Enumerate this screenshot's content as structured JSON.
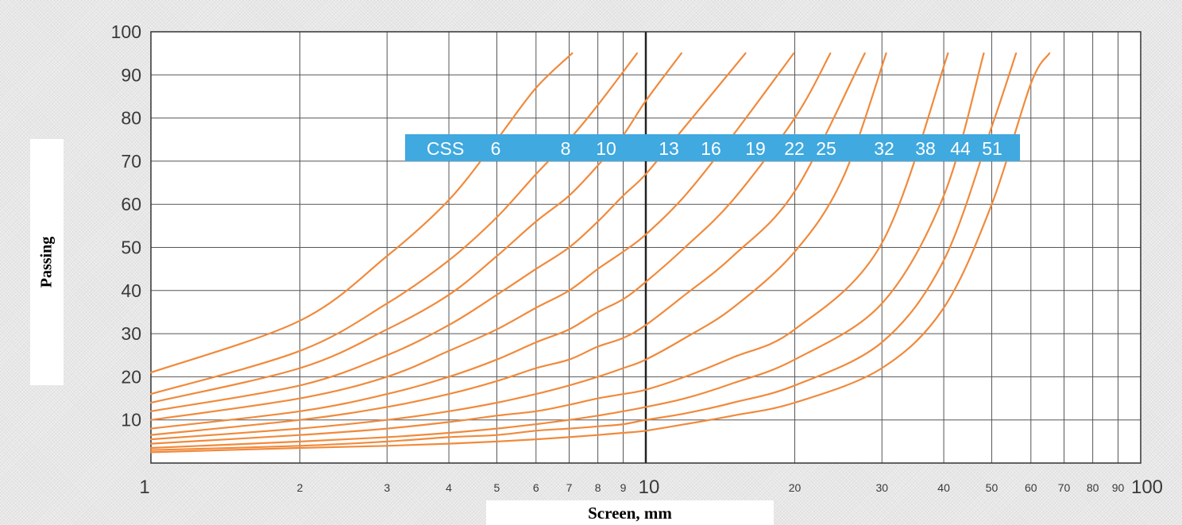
{
  "chart_data": {
    "type": "line",
    "title": "",
    "xlabel": "Screen, mm",
    "ylabel": "Passing",
    "x_scale": "log",
    "xlim": [
      1,
      100
    ],
    "ylim": [
      0,
      100
    ],
    "grid": true,
    "x_ticks": [
      1,
      2,
      3,
      4,
      5,
      6,
      7,
      8,
      9,
      10,
      20,
      30,
      40,
      50,
      60,
      70,
      80,
      90,
      100
    ],
    "x_tick_labels": [
      "1",
      "2",
      "3",
      "4",
      "5",
      "6",
      "7",
      "8",
      "9",
      "10",
      "20",
      "30",
      "40",
      "50",
      "60",
      "70",
      "80",
      "90",
      "100"
    ],
    "y_ticks": [
      10,
      20,
      30,
      40,
      50,
      60,
      70,
      80,
      90,
      100
    ],
    "y_tick_labels": [
      "10",
      "20",
      "30",
      "40",
      "50",
      "60",
      "70",
      "80",
      "90",
      "100"
    ],
    "banner": {
      "label": "CSS",
      "values": [
        "6",
        "8",
        "10",
        "13",
        "16",
        "19",
        "22",
        "25",
        "32",
        "38",
        "44",
        "51"
      ],
      "color": "#3fa9e0"
    },
    "line_color": "#f08a3c",
    "series": [
      {
        "css": "6",
        "x": [
          1,
          2,
          3,
          4,
          5,
          6,
          7.1
        ],
        "y": [
          21,
          33,
          48,
          61,
          75,
          87,
          95
        ]
      },
      {
        "css": "8",
        "x": [
          1,
          2,
          3,
          4,
          5,
          6,
          7,
          8,
          9.6
        ],
        "y": [
          16,
          26,
          37,
          47,
          57,
          67,
          75,
          83,
          95
        ]
      },
      {
        "css": "10",
        "x": [
          1,
          2,
          3,
          4,
          5,
          6,
          7,
          8,
          9,
          10,
          11.8
        ],
        "y": [
          14,
          22,
          31,
          39,
          48,
          56,
          62,
          69,
          76,
          84,
          95
        ]
      },
      {
        "css": "13",
        "x": [
          1,
          2,
          3,
          4,
          5,
          6,
          7,
          8,
          9,
          10,
          12,
          15.9
        ],
        "y": [
          12,
          18,
          25,
          32,
          39,
          45,
          50,
          56,
          62,
          67,
          78,
          95
        ]
      },
      {
        "css": "16",
        "x": [
          1,
          2,
          3,
          4,
          5,
          6,
          7,
          8,
          9,
          10,
          12,
          15,
          19.9
        ],
        "y": [
          10,
          15,
          20,
          26,
          31,
          36,
          40,
          45,
          49,
          53,
          62,
          76,
          95
        ]
      },
      {
        "css": "19",
        "x": [
          1,
          2,
          3,
          4,
          5,
          6,
          7,
          8,
          9,
          10,
          12,
          15,
          20,
          23.6
        ],
        "y": [
          8,
          12,
          16,
          20,
          24,
          28,
          31,
          35,
          38,
          42,
          50,
          61,
          80,
          95
        ]
      },
      {
        "css": "22",
        "x": [
          1,
          2,
          3,
          4,
          5,
          6,
          7,
          8,
          9,
          10,
          12,
          15,
          20,
          27.7
        ],
        "y": [
          6.5,
          10,
          13,
          16,
          19,
          22,
          24,
          27,
          29,
          32,
          39,
          48,
          63,
          95
        ]
      },
      {
        "css": "25",
        "x": [
          1,
          2,
          3,
          4,
          5,
          6,
          7,
          8,
          9,
          10,
          12,
          15,
          20,
          25,
          30.6
        ],
        "y": [
          5.5,
          8,
          10,
          12,
          14,
          16,
          18,
          20,
          22,
          24,
          29,
          36,
          49,
          66,
          95
        ]
      },
      {
        "css": "32",
        "x": [
          1,
          2,
          3,
          4,
          5,
          6,
          7,
          8,
          9,
          10,
          12,
          15,
          20,
          30,
          40.8
        ],
        "y": [
          4.5,
          6.5,
          8,
          9.5,
          11,
          12,
          13.5,
          15,
          16,
          17,
          20,
          24.5,
          31,
          51,
          95
        ]
      },
      {
        "css": "38",
        "x": [
          1,
          2,
          3,
          4,
          5,
          6,
          7,
          8,
          9,
          10,
          12,
          15,
          20,
          30,
          40,
          48.2
        ],
        "y": [
          3.5,
          5,
          6,
          7,
          8,
          9,
          10,
          11,
          12,
          13,
          15,
          18.5,
          24,
          37,
          62,
          95
        ]
      },
      {
        "css": "44",
        "x": [
          1,
          2,
          3,
          4,
          5,
          6,
          7,
          8,
          9,
          10,
          12,
          15,
          20,
          30,
          40,
          50,
          56
        ],
        "y": [
          3,
          4,
          5,
          6,
          6.5,
          7.5,
          8,
          8.5,
          9,
          10,
          11.5,
          14,
          18,
          28,
          47,
          78,
          95
        ]
      },
      {
        "css": "51",
        "x": [
          1,
          2,
          3,
          4,
          5,
          6,
          7,
          8,
          9,
          10,
          12,
          15,
          20,
          30,
          40,
          50,
          60,
          65.4
        ],
        "y": [
          2.5,
          3.5,
          4,
          4.5,
          5,
          5.5,
          6,
          6.5,
          7,
          7.5,
          9,
          11,
          14,
          22,
          36,
          60,
          88,
          95
        ]
      }
    ]
  }
}
